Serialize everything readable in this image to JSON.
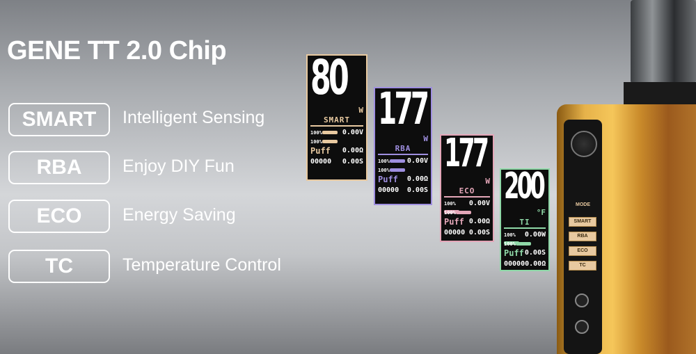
{
  "title": "GENE TT 2.0 Chip",
  "modes": [
    {
      "label": "SMART",
      "desc": "Intelligent Sensing"
    },
    {
      "label": "RBA",
      "desc": "Enjoy DIY Fun"
    },
    {
      "label": "ECO",
      "desc": "Energy Saving"
    },
    {
      "label": "TC",
      "desc": "Temperature Control"
    }
  ],
  "screens": [
    {
      "value": "80",
      "unit": "W",
      "mode": "SMART",
      "color": "#e8c9a0",
      "battery": [
        "100%",
        "100%"
      ],
      "puff_label": "Puff",
      "puff": "00000",
      "readings": [
        "0.00V",
        "0.00Ω",
        "0.00S"
      ]
    },
    {
      "value": "177",
      "unit": "W",
      "mode": "RBA",
      "color": "#9f8fe0",
      "battery": [
        "100%",
        "100%"
      ],
      "puff_label": "Puff",
      "puff": "00000",
      "readings": [
        "0.00V",
        "0.00Ω",
        "0.00S"
      ]
    },
    {
      "value": "177",
      "unit": "W",
      "mode": "ECO",
      "color": "#e4a6b8",
      "battery": [
        "100%",
        "100%"
      ],
      "puff_label": "Puff",
      "puff": "00000",
      "readings": [
        "0.00V",
        "0.00Ω",
        "0.00S"
      ]
    },
    {
      "value": "200",
      "unit": "°F",
      "mode": "TI",
      "color": "#8fd9a8",
      "battery": [
        "100%",
        "100%"
      ],
      "puff_label": "Puff",
      "puff": "00000",
      "readings": [
        "0.00W",
        "0.00S",
        "0.00Ω"
      ]
    }
  ],
  "device": {
    "mode_label": "MODE",
    "buttons": [
      "SMART",
      "RBA",
      "ECO",
      "TC"
    ],
    "body_color": "#d9a233"
  }
}
